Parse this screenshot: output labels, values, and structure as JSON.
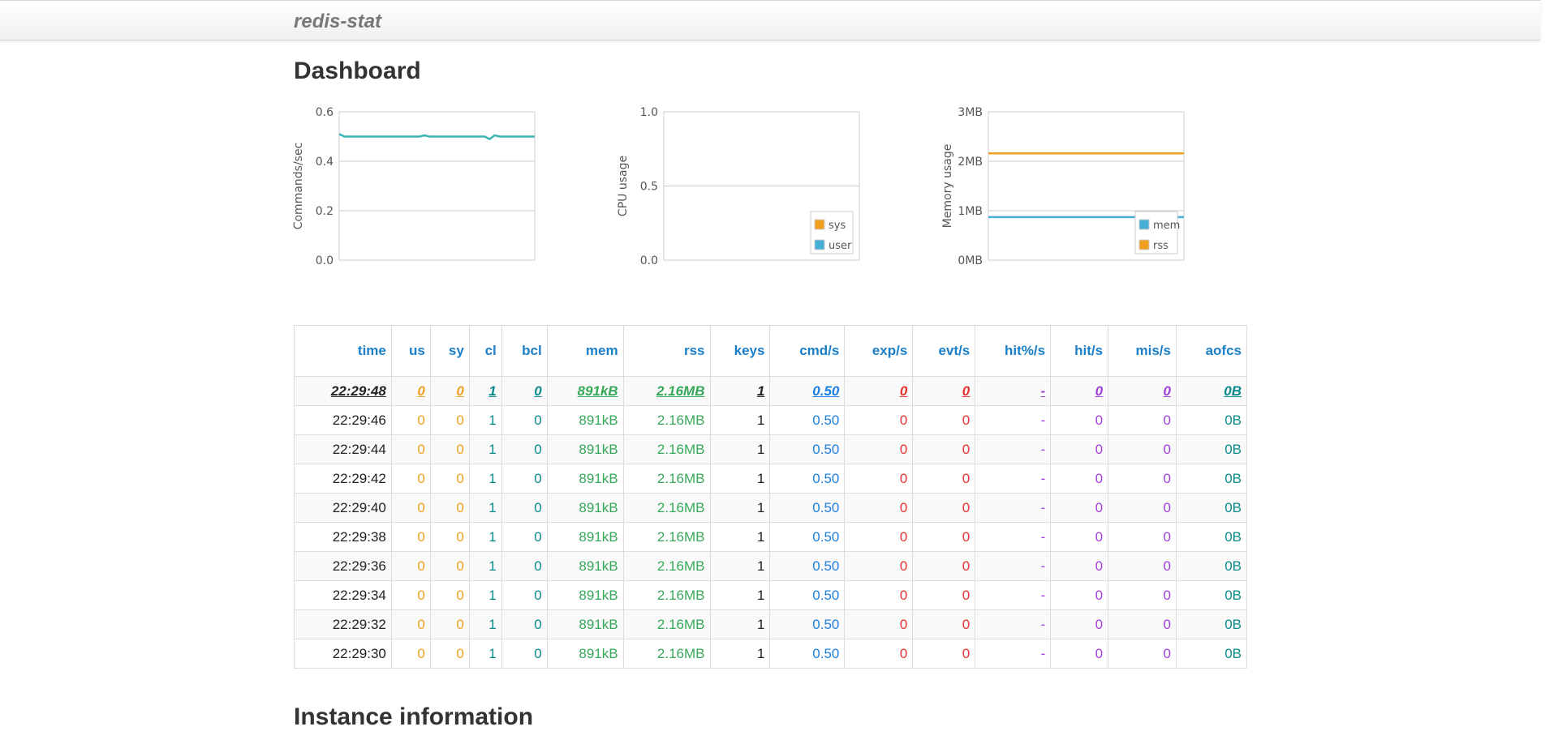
{
  "navbar": {
    "brand": "redis-stat"
  },
  "dashboard": {
    "title": "Dashboard"
  },
  "instance": {
    "title": "Instance information"
  },
  "colors": {
    "teal_line": "#3ab4b4",
    "orange": "#f0a020",
    "blue": "#47aed8",
    "header_blue": "#1a7fc8"
  },
  "charts": [
    {
      "id": "commands",
      "ylabel": "Commands/sec",
      "yticks": [
        "0.6",
        "0.4",
        "0.2",
        "0.0"
      ],
      "ylim": [
        0,
        0.6
      ],
      "legend": [],
      "series": [
        {
          "name": "",
          "color": "#3ab4b4",
          "values": [
            0.51,
            0.5,
            0.5,
            0.5,
            0.5,
            0.5,
            0.5,
            0.5,
            0.5,
            0.5,
            0.5,
            0.5,
            0.5,
            0.5,
            0.5,
            0.5,
            0.5,
            0.505,
            0.5,
            0.5,
            0.5,
            0.5,
            0.5,
            0.5,
            0.5,
            0.5,
            0.5,
            0.5,
            0.5,
            0.5,
            0.49,
            0.505,
            0.5,
            0.5,
            0.5,
            0.5,
            0.5,
            0.5,
            0.5,
            0.5
          ]
        }
      ]
    },
    {
      "id": "cpu",
      "ylabel": "CPU usage",
      "yticks": [
        "1.0",
        "0.5",
        "0.0"
      ],
      "ylim": [
        0,
        1.0
      ],
      "legend": [
        {
          "label": "sys",
          "color": "#f0a020"
        },
        {
          "label": "user",
          "color": "#47aed8"
        }
      ],
      "series": []
    },
    {
      "id": "memory",
      "ylabel": "Memory usage",
      "yticks": [
        "3MB",
        "2MB",
        "1MB",
        "0MB"
      ],
      "ylim": [
        0,
        3
      ],
      "legend": [
        {
          "label": "mem",
          "color": "#47aed8"
        },
        {
          "label": "rss",
          "color": "#f0a020"
        }
      ],
      "series": [
        {
          "name": "mem",
          "color": "#47aed8",
          "values": [
            0.87,
            0.87
          ]
        },
        {
          "name": "rss",
          "color": "#f0a020",
          "values": [
            2.16,
            2.16
          ]
        }
      ]
    }
  ],
  "table": {
    "columns": [
      {
        "key": "time",
        "label": "time"
      },
      {
        "key": "us",
        "label": "us"
      },
      {
        "key": "sy",
        "label": "sy"
      },
      {
        "key": "cl",
        "label": "cl"
      },
      {
        "key": "bcl",
        "label": "bcl"
      },
      {
        "key": "mem",
        "label": "mem"
      },
      {
        "key": "rss",
        "label": "rss"
      },
      {
        "key": "keys",
        "label": "keys"
      },
      {
        "key": "cmd",
        "label": "cmd/s"
      },
      {
        "key": "exp",
        "label": "exp/s"
      },
      {
        "key": "evt",
        "label": "evt/s"
      },
      {
        "key": "hitp",
        "label": "hit%/s"
      },
      {
        "key": "hit",
        "label": "hit/s"
      },
      {
        "key": "mis",
        "label": "mis/s"
      },
      {
        "key": "aofcs",
        "label": "aofcs"
      }
    ],
    "rows": [
      [
        "22:29:48",
        "0",
        "0",
        "1",
        "0",
        "891kB",
        "2.16MB",
        "1",
        "0.50",
        "0",
        "0",
        "-",
        "0",
        "0",
        "0B"
      ],
      [
        "22:29:46",
        "0",
        "0",
        "1",
        "0",
        "891kB",
        "2.16MB",
        "1",
        "0.50",
        "0",
        "0",
        "-",
        "0",
        "0",
        "0B"
      ],
      [
        "22:29:44",
        "0",
        "0",
        "1",
        "0",
        "891kB",
        "2.16MB",
        "1",
        "0.50",
        "0",
        "0",
        "-",
        "0",
        "0",
        "0B"
      ],
      [
        "22:29:42",
        "0",
        "0",
        "1",
        "0",
        "891kB",
        "2.16MB",
        "1",
        "0.50",
        "0",
        "0",
        "-",
        "0",
        "0",
        "0B"
      ],
      [
        "22:29:40",
        "0",
        "0",
        "1",
        "0",
        "891kB",
        "2.16MB",
        "1",
        "0.50",
        "0",
        "0",
        "-",
        "0",
        "0",
        "0B"
      ],
      [
        "22:29:38",
        "0",
        "0",
        "1",
        "0",
        "891kB",
        "2.16MB",
        "1",
        "0.50",
        "0",
        "0",
        "-",
        "0",
        "0",
        "0B"
      ],
      [
        "22:29:36",
        "0",
        "0",
        "1",
        "0",
        "891kB",
        "2.16MB",
        "1",
        "0.50",
        "0",
        "0",
        "-",
        "0",
        "0",
        "0B"
      ],
      [
        "22:29:34",
        "0",
        "0",
        "1",
        "0",
        "891kB",
        "2.16MB",
        "1",
        "0.50",
        "0",
        "0",
        "-",
        "0",
        "0",
        "0B"
      ],
      [
        "22:29:32",
        "0",
        "0",
        "1",
        "0",
        "891kB",
        "2.16MB",
        "1",
        "0.50",
        "0",
        "0",
        "-",
        "0",
        "0",
        "0B"
      ],
      [
        "22:29:30",
        "0",
        "0",
        "1",
        "0",
        "891kB",
        "2.16MB",
        "1",
        "0.50",
        "0",
        "0",
        "-",
        "0",
        "0",
        "0B"
      ]
    ]
  }
}
